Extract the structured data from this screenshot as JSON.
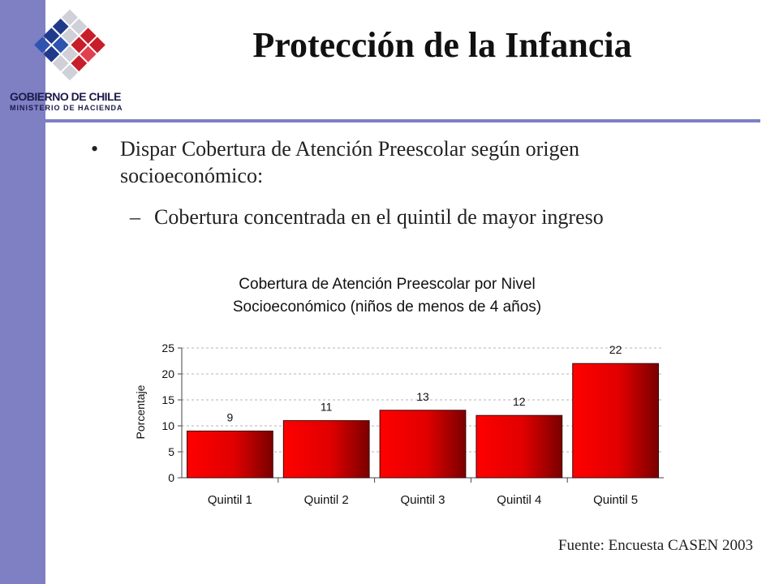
{
  "slide": {
    "title": "Protección de la Infancia",
    "bullet_main": "Dispar Cobertura de Atención Preescolar según origen socioeconómico:",
    "bullet_sub": "Cobertura concentrada en el quintil de mayor ingreso",
    "bullet_mark": "•",
    "sub_mark": "–",
    "source": "Fuente: Encuesta CASEN 2003"
  },
  "logo": {
    "line1": "GOBIERNO DE CHILE",
    "line2": "MINISTERIO DE HACIENDA"
  },
  "colors": {
    "accent_bar": "#7f7fc4",
    "bar_fill": "#ff0000",
    "bar_dark": "#7a0000"
  },
  "chart_data": {
    "type": "bar",
    "title_line1": "Cobertura de Atención Preescolar por Nivel",
    "title_line2": "Socioeconómico (niños de menos de 4 años)",
    "ylabel": "Porcentaje",
    "xlabel": "",
    "categories": [
      "Quintil 1",
      "Quintil 2",
      "Quintil 3",
      "Quintil 4",
      "Quintil 5"
    ],
    "values": [
      9,
      11,
      13,
      12,
      22
    ],
    "ylim": [
      0,
      25
    ],
    "yticks": [
      0,
      5,
      10,
      15,
      20,
      25
    ],
    "grid": true,
    "legend": "none"
  }
}
